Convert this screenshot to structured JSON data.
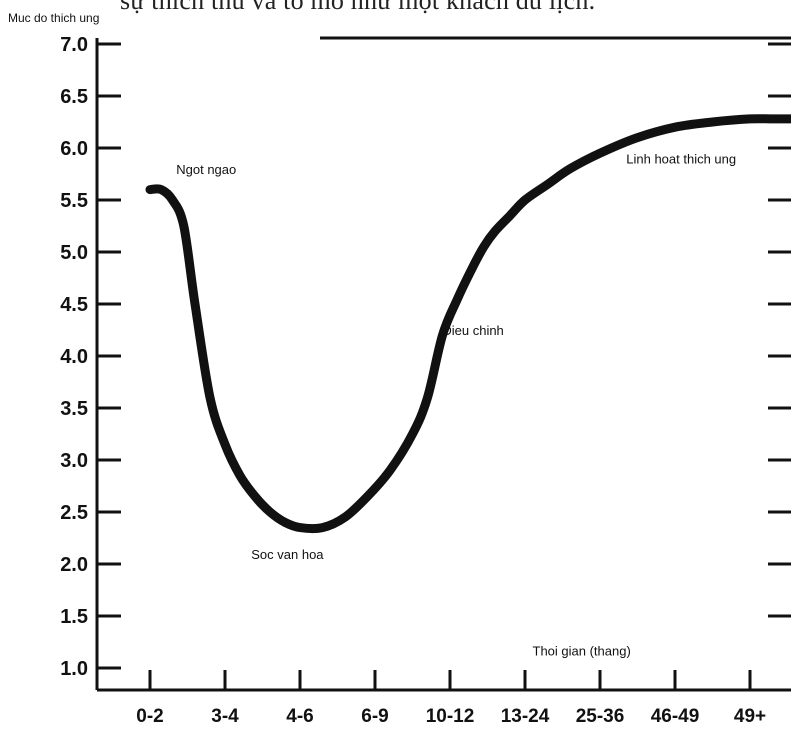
{
  "page": {
    "heading_fragment": "sự thích thú và tò mò như một khách du lịch."
  },
  "chart_data": {
    "type": "line",
    "title": "",
    "ylabel": "Muc do thich ung",
    "xlabel": "Thoi gian (thang)",
    "ylim": [
      0.9,
      7.0
    ],
    "yticks": [
      "1.0",
      "1.5",
      "2.0",
      "2.5",
      "3.0",
      "3.5",
      "4.0",
      "4.5",
      "5.0",
      "5.5",
      "6.0",
      "6.5",
      "7.0"
    ],
    "categories": [
      "0-2",
      "3-4",
      "4-6",
      "6-9",
      "10-12",
      "13-24",
      "25-36",
      "46-49",
      "49+"
    ],
    "series": [
      {
        "x": [
          0.0,
          0.15,
          0.3,
          0.45,
          0.6,
          0.8,
          1.0,
          1.2,
          1.4,
          1.6,
          1.8,
          2.0,
          2.3,
          2.6,
          2.9,
          3.2,
          3.5,
          3.7,
          3.9,
          4.1,
          4.3,
          4.45,
          4.6,
          4.8,
          5.0,
          5.3,
          5.6,
          6.0,
          6.5,
          7.0,
          7.5,
          8.0,
          8.3,
          8.55
        ],
        "y": [
          5.6,
          5.6,
          5.5,
          5.25,
          4.5,
          3.6,
          3.15,
          2.85,
          2.65,
          2.5,
          2.4,
          2.35,
          2.35,
          2.45,
          2.65,
          2.9,
          3.25,
          3.6,
          4.2,
          4.55,
          4.85,
          5.05,
          5.2,
          5.35,
          5.5,
          5.65,
          5.8,
          5.95,
          6.1,
          6.2,
          6.25,
          6.28,
          6.28,
          6.28
        ]
      }
    ],
    "annotations": [
      {
        "text": "Ngot ngao",
        "x": 0.35,
        "y": 5.75
      },
      {
        "text": "Soc van hoa",
        "x": 1.35,
        "y": 2.05
      },
      {
        "text": ",Dieu chinh",
        "x": 3.85,
        "y": 4.2
      },
      {
        "text": "Linh hoat thich ung",
        "x": 6.35,
        "y": 5.85
      },
      {
        "text": "Thoi gian (thang)",
        "x": 5.1,
        "y": 1.12
      }
    ],
    "grid": false,
    "legend": "none",
    "colors": {
      "line": "#111111",
      "axis": "#111111"
    }
  }
}
